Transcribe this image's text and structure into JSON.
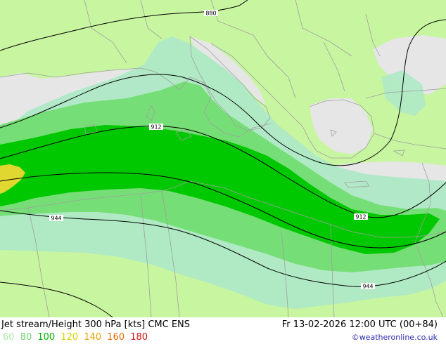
{
  "title": "Jet stream/Height 300 hPa [kts] CMC ENS",
  "valid_time": "Fr 13-02-2026 12:00 UTC (00+84)",
  "legend": [
    {
      "label": "60",
      "color": "#a8e8a8"
    },
    {
      "label": "80",
      "color": "#6cd26c"
    },
    {
      "label": "100",
      "color": "#00b400"
    },
    {
      "label": "120",
      "color": "#d8d000"
    },
    {
      "label": "140",
      "color": "#e8a000"
    },
    {
      "label": "160",
      "color": "#e86a00"
    },
    {
      "label": "180",
      "color": "#d01010"
    }
  ],
  "credit": "©weatheronline.co.uk",
  "contours": [
    {
      "label": "880"
    },
    {
      "label": "912"
    },
    {
      "label": "912"
    },
    {
      "label": "944"
    },
    {
      "label": "944"
    }
  ],
  "colors": {
    "land": "#c8f5a0",
    "sea": "#e6e6e6",
    "jet60": "#aee9c6",
    "jet80": "#76de76",
    "jet100": "#00c800",
    "jet120": "#e0d830",
    "borders": "#a0a0a0",
    "contour": "#000000"
  }
}
